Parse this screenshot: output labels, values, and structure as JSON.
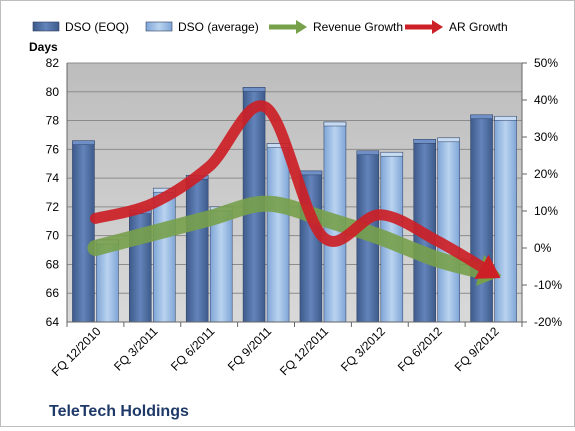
{
  "chart_data": {
    "type": "bar",
    "title": "TeleTech Holdings",
    "ylabel_left": "Days",
    "categories": [
      "FQ 12/2010",
      "FQ 3/2011",
      "FQ 6/2011",
      "FQ 9/2011",
      "FQ 12/2011",
      "FQ 3/2012",
      "FQ 6/2012",
      "FQ 9/2012"
    ],
    "left_axis": {
      "min": 64,
      "max": 82,
      "ticks": [
        "64",
        "66",
        "68",
        "70",
        "72",
        "74",
        "76",
        "78",
        "80",
        "82"
      ]
    },
    "right_axis": {
      "min": -20,
      "max": 50,
      "ticks": [
        "-20%",
        "-10%",
        "0%",
        "10%",
        "20%",
        "30%",
        "40%",
        "50%"
      ]
    },
    "series": [
      {
        "name": "DSO (EOQ)",
        "kind": "bar",
        "axis": "left",
        "color": "#4f6fa3",
        "values": [
          76.6,
          71.8,
          74.2,
          80.3,
          74.5,
          75.9,
          76.7,
          78.4
        ]
      },
      {
        "name": "DSO (average)",
        "kind": "bar",
        "axis": "left",
        "color": "#9cbde4",
        "values": [
          69.7,
          73.3,
          72.0,
          76.4,
          77.9,
          75.8,
          76.8,
          78.3
        ]
      },
      {
        "name": "Revenue Growth",
        "kind": "arrow-line",
        "axis": "right",
        "color": "#77a04a",
        "values": [
          0,
          4,
          8,
          12,
          8,
          3,
          -3,
          -7
        ]
      },
      {
        "name": "AR Growth",
        "kind": "arrow-line",
        "axis": "right",
        "color": "#cc2026",
        "values": [
          8,
          12,
          22,
          38,
          3,
          9,
          2,
          -7
        ]
      }
    ],
    "grid": true,
    "legend": "top"
  }
}
